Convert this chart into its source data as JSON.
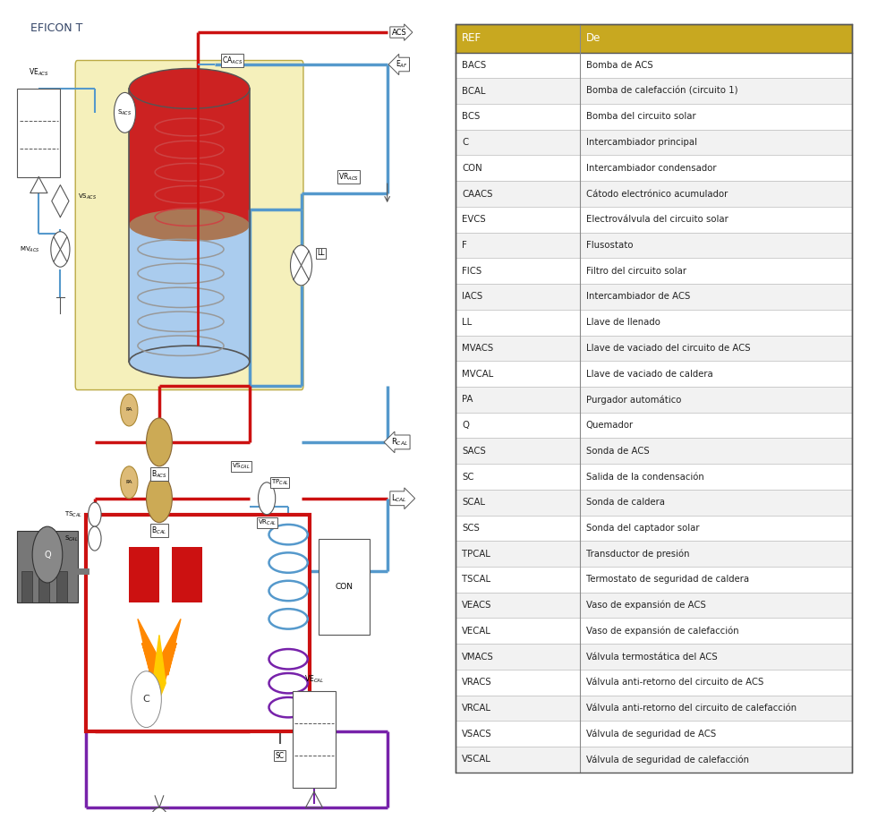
{
  "title": "EFICON T",
  "table_header": [
    "REF",
    "De"
  ],
  "table_header_bg": "#C8A820",
  "table_rows": [
    [
      "BACS",
      "Bomba de ACS"
    ],
    [
      "BCAL",
      "Bomba de calefacción (circuito 1)"
    ],
    [
      "BCS",
      "Bomba del circuito solar"
    ],
    [
      "C",
      "Intercambiador principal"
    ],
    [
      "CON",
      "Intercambiador condensador"
    ],
    [
      "CAACS",
      "Cátodo electrónico acumulador"
    ],
    [
      "EVCS",
      "Electroválvula del circuito solar"
    ],
    [
      "F",
      "Flusostato"
    ],
    [
      "FICS",
      "Filtro del circuito solar"
    ],
    [
      "IACS",
      "Intercambiador de ACS"
    ],
    [
      "LL",
      "Llave de llenado"
    ],
    [
      "MVACS",
      "Llave de vaciado del circuito de ACS"
    ],
    [
      "MVCAL",
      "Llave de vaciado de caldera"
    ],
    [
      "PA",
      "Purgador automático"
    ],
    [
      "Q",
      "Quemador"
    ],
    [
      "SACS",
      "Sonda de ACS"
    ],
    [
      "SC",
      "Salida de la condensación"
    ],
    [
      "SCAL",
      "Sonda de caldera"
    ],
    [
      "SCS",
      "Sonda del captador solar"
    ],
    [
      "TPCAL",
      "Transductor de presión"
    ],
    [
      "TSCAL",
      "Termostato de seguridad de caldera"
    ],
    [
      "VEACS",
      "Vaso de expansión de ACS"
    ],
    [
      "VECAL",
      "Vaso de expansión de calefacción"
    ],
    [
      "VMACS",
      "Válvula termostática del ACS"
    ],
    [
      "VRACS",
      "Válvula anti-retorno del circuito de ACS"
    ],
    [
      "VRCAL",
      "Válvula anti-retorno del circuito de calefacción"
    ],
    [
      "VSACS",
      "Válvula de seguridad de ACS"
    ],
    [
      "VSCAL",
      "Válvula de seguridad de calefacción"
    ]
  ],
  "red": "#CC1111",
  "blue": "#5599CC",
  "purple": "#7722AA",
  "gray": "#888888",
  "dark_gray": "#444444",
  "tank_red_top": "#CC2222",
  "tank_blue_bot": "#AACCEE",
  "tank_yellow_bg": "#F5F0BB",
  "coil_gray": "#999999",
  "boiler_border": "#CC1111",
  "flame_orange": "#FF8800",
  "flame_yellow": "#FFCC00",
  "lw_main": 2.5,
  "lw_thin": 1.5,
  "fs_label": 6.0,
  "fs_title": 9.0
}
